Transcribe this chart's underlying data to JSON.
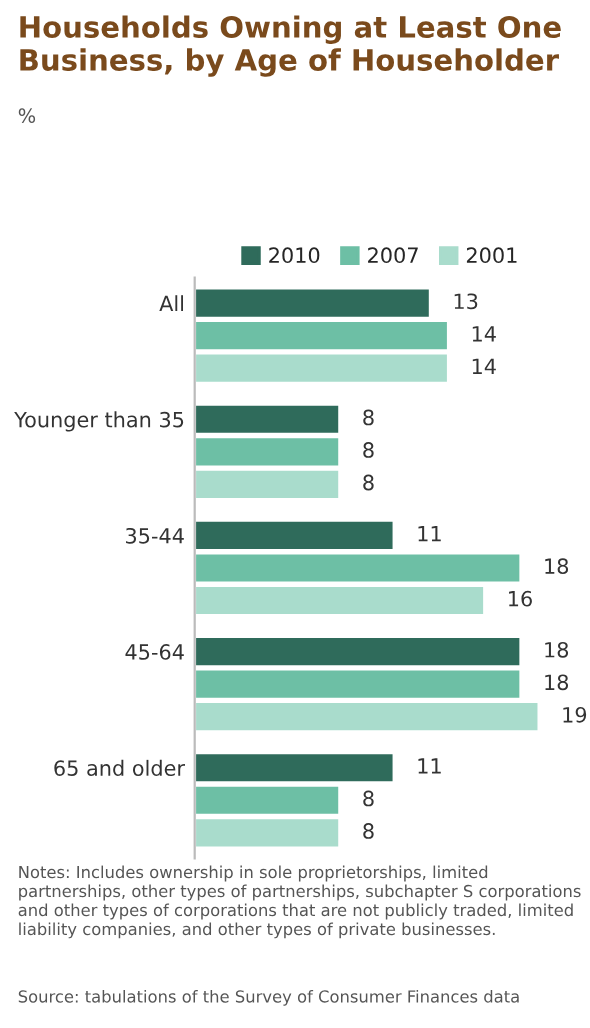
{
  "chart_data": {
    "type": "bar",
    "orientation": "horizontal",
    "title": "Households Owning at Least One Business, by Age of Householder",
    "subtitle": "%",
    "categories": [
      "All",
      "Younger than 35",
      "35-44",
      "45-64",
      "65 and older"
    ],
    "series": [
      {
        "name": "2010",
        "color": "#2f6b5b",
        "values": [
          13,
          8,
          11,
          18,
          11
        ]
      },
      {
        "name": "2007",
        "color": "#6dbfa5",
        "values": [
          14,
          8,
          18,
          18,
          8
        ]
      },
      {
        "name": "2001",
        "color": "#a9dccc",
        "values": [
          14,
          8,
          16,
          19,
          8
        ]
      }
    ],
    "data_labels": true,
    "legend": "top",
    "grid": false,
    "tick_labels": "y",
    "annotations": [
      "Notes: Includes ownership in sole proprietorships, limited partnerships, other types of partnerships, subchapter S corporations and other types of corporations that are not publicly traded, limited liability companies, and other types of private businesses.",
      "Source: tabulations of the Survey of Consumer Finances data"
    ]
  }
}
